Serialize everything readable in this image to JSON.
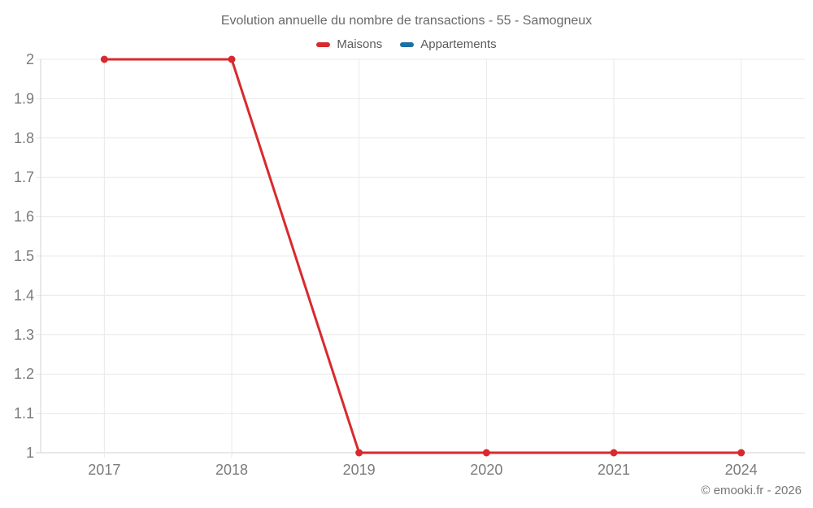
{
  "title": "Evolution annuelle du nombre de transactions - 55 - Samogneux",
  "legend": {
    "items": [
      {
        "label": "Maisons",
        "color": "#d82a2e"
      },
      {
        "label": "Appartements",
        "color": "#1d6fa3"
      }
    ]
  },
  "footer": {
    "copyright": "© emooki.fr - 2026"
  },
  "chart_data": {
    "type": "line",
    "title": "Evolution annuelle du nombre de transactions - 55 - Samogneux",
    "categories": [
      "2017",
      "2018",
      "2019",
      "2020",
      "2021",
      "2024"
    ],
    "series": [
      {
        "name": "Maisons",
        "color": "#d82a2e",
        "values": [
          2,
          2,
          1,
          1,
          1,
          1
        ]
      },
      {
        "name": "Appartements",
        "color": "#1d6fa3",
        "values": []
      }
    ],
    "xlabel": "",
    "ylabel": "",
    "ylim": [
      1,
      2
    ],
    "ytick_step": 0.1,
    "grid": true,
    "legend_position": "top",
    "marker": "circle",
    "marker_radius": 4.5,
    "line_width": 3,
    "grid_color": "#e9e9e9",
    "axis_color": "#d2d2d2",
    "tick_label_color": "#7a7b7d"
  }
}
